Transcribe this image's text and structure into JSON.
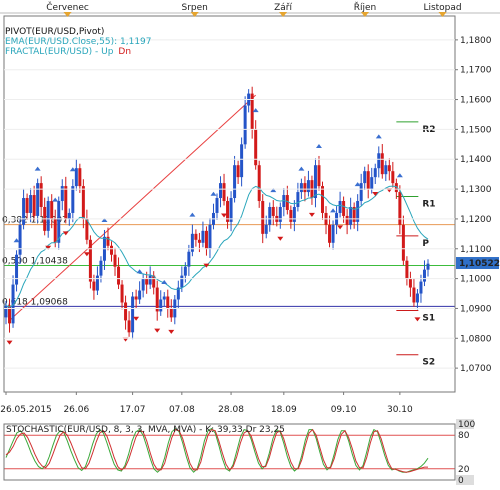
{
  "months": [
    "Červenec",
    "Srpen",
    "Září",
    "Říjen",
    "Listopad"
  ],
  "indicators": {
    "pivot": "PIVOT(EUR/USD,Pivot)",
    "ema": "EMA(EUR/USD.Close,55): 1,1197",
    "fractal_name": "FRACTAL(EUR/USD) - ",
    "fractal_up": "Up",
    "fractal_dn": "Dn"
  },
  "colors": {
    "bull": "#2454c8",
    "bear": "#d21a1a",
    "ema": "#2aa6bb",
    "fib_green": "#3cbc3c",
    "fib_blue": "#3333a8",
    "fib_orange": "#e89a55",
    "trend": "#e84040",
    "stoch_k": "#3aa83a",
    "stoch_d": "#d03030",
    "price_tag": "#3070c8"
  },
  "chart_data": [
    {
      "type": "candlestick",
      "instrument": "EUR/USD",
      "ylim": [
        1.062,
        1.188
      ],
      "yticks": [
        "1,1800",
        "1,1700",
        "1,1600",
        "1,1500",
        "1,1400",
        "1,1300",
        "1,1200",
        "1,1100",
        "1,1000",
        "1,0900",
        "1,0800",
        "1,0700"
      ],
      "ytick_values": [
        1.18,
        1.17,
        1.16,
        1.15,
        1.14,
        1.13,
        1.12,
        1.11,
        1.1,
        1.09,
        1.08,
        1.07
      ],
      "xticks": [
        "26.05.2015",
        "26.06",
        "17.07",
        "07.08",
        "28.08",
        "18.09",
        "09.10",
        "30.10"
      ],
      "last_price": "1,10522",
      "last_value": 1.10522,
      "fib_levels": [
        {
          "label": "0,382 1,11807",
          "value": 1.11807,
          "color": "fib_orange"
        },
        {
          "label": "0,500 1,10438",
          "value": 1.10438,
          "color": "fib_green"
        },
        {
          "label": "0,618 1,09068",
          "value": 1.09068,
          "color": "fib_blue"
        }
      ],
      "pivot_levels": [
        {
          "label": "R2",
          "value": 1.1525
        },
        {
          "label": "R1",
          "value": 1.1275
        },
        {
          "label": "P",
          "value": 1.1143
        },
        {
          "label": "S1",
          "value": 1.0893
        },
        {
          "label": "S2",
          "value": 1.0745
        }
      ],
      "trendline": {
        "from": {
          "x": 1,
          "y": 1.086
        },
        "to": {
          "x": 71,
          "y": 1.1615
        }
      },
      "closes": [
        1.091,
        1.085,
        1.098,
        1.108,
        1.118,
        1.127,
        1.122,
        1.128,
        1.121,
        1.132,
        1.124,
        1.116,
        1.126,
        1.12,
        1.112,
        1.126,
        1.131,
        1.12,
        1.122,
        1.131,
        1.137,
        1.131,
        1.12,
        1.113,
        1.099,
        1.096,
        1.101,
        1.106,
        1.114,
        1.111,
        1.108,
        1.104,
        1.098,
        1.092,
        1.086,
        1.082,
        1.094,
        1.093,
        1.096,
        1.1,
        1.098,
        1.101,
        1.097,
        1.089,
        1.093,
        1.094,
        1.09,
        1.087,
        1.093,
        1.097,
        1.101,
        1.104,
        1.109,
        1.115,
        1.113,
        1.112,
        1.116,
        1.11,
        1.118,
        1.122,
        1.127,
        1.132,
        1.126,
        1.119,
        1.127,
        1.138,
        1.134,
        1.145,
        1.158,
        1.162,
        1.15,
        1.138,
        1.126,
        1.115,
        1.118,
        1.124,
        1.121,
        1.119,
        1.124,
        1.128,
        1.123,
        1.119,
        1.124,
        1.129,
        1.132,
        1.129,
        1.133,
        1.127,
        1.138,
        1.131,
        1.122,
        1.118,
        1.112,
        1.118,
        1.122,
        1.126,
        1.121,
        1.118,
        1.124,
        1.119,
        1.126,
        1.132,
        1.136,
        1.13,
        1.134,
        1.137,
        1.142,
        1.135,
        1.138,
        1.136,
        1.132,
        1.129,
        1.118,
        1.106,
        1.1,
        1.097,
        1.092,
        1.095,
        1.099,
        1.103,
        1.105
      ],
      "fractals_up": [
        3,
        9,
        14,
        19,
        28,
        38,
        45,
        53,
        59,
        71,
        76,
        84,
        89,
        93,
        100,
        106,
        112
      ],
      "fractals_dn": [
        1,
        12,
        17,
        23,
        34,
        37,
        43,
        47,
        57,
        62,
        78,
        87,
        95,
        105,
        109,
        117
      ]
    },
    {
      "type": "line",
      "title": "STOCHASTIC(EUR/USD, 8, 3, 3, MVA, MVA) - K: 39,33 Dr 23,25",
      "ylim": [
        0,
        100
      ],
      "yticks": [
        "100",
        "80",
        "20",
        "0"
      ],
      "ytick_values": [
        100,
        80,
        20,
        0
      ],
      "levels": [
        80,
        20
      ],
      "series": [
        {
          "name": "K",
          "values": [
            40,
            55,
            70,
            84,
            88,
            80,
            65,
            48,
            34,
            24,
            20,
            26,
            42,
            62,
            80,
            88,
            85,
            70,
            52,
            36,
            22,
            17,
            24,
            42,
            64,
            82,
            90,
            84,
            66,
            46,
            28,
            18,
            16,
            26,
            46,
            70,
            86,
            90,
            80,
            60,
            38,
            20,
            14,
            20,
            40,
            66,
            86,
            92,
            86,
            66,
            42,
            22,
            14,
            20,
            42,
            70,
            88,
            92,
            84,
            62,
            38,
            20,
            16,
            28,
            52,
            76,
            90,
            88,
            72,
            50,
            30,
            20,
            26,
            48,
            74,
            90,
            86,
            66,
            42,
            24,
            16,
            22,
            44,
            72,
            90,
            90,
            74,
            50,
            28,
            18,
            24,
            46,
            72,
            88,
            88,
            70,
            46,
            26,
            18,
            26,
            50,
            76,
            90,
            86,
            66,
            44,
            26,
            18,
            20,
            16,
            14,
            14,
            16,
            18,
            20,
            24,
            30,
            39
          ]
        },
        {
          "name": "D",
          "values": [
            45,
            50,
            60,
            74,
            82,
            84,
            76,
            62,
            46,
            33,
            25,
            22,
            30,
            46,
            64,
            80,
            86,
            80,
            66,
            50,
            34,
            22,
            20,
            30,
            48,
            68,
            84,
            88,
            78,
            60,
            40,
            24,
            18,
            22,
            36,
            56,
            76,
            88,
            86,
            70,
            48,
            28,
            18,
            18,
            30,
            54,
            76,
            90,
            88,
            74,
            52,
            30,
            18,
            18,
            32,
            58,
            80,
            90,
            88,
            70,
            48,
            28,
            18,
            24,
            42,
            66,
            84,
            88,
            78,
            58,
            38,
            24,
            24,
            40,
            64,
            84,
            88,
            74,
            52,
            32,
            20,
            20,
            36,
            62,
            84,
            90,
            80,
            58,
            36,
            22,
            22,
            38,
            62,
            82,
            88,
            76,
            56,
            34,
            22,
            22,
            40,
            66,
            86,
            88,
            74,
            52,
            32,
            20,
            19,
            17,
            15,
            14,
            15,
            17,
            19,
            21,
            23,
            23
          ]
        }
      ]
    }
  ]
}
